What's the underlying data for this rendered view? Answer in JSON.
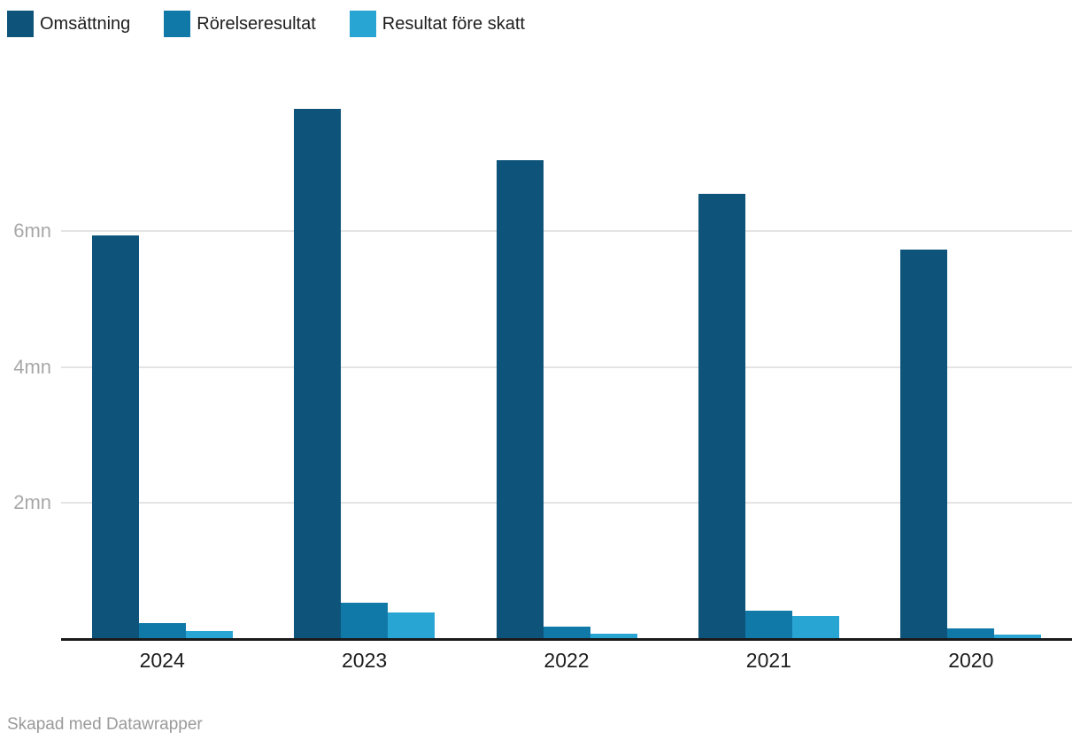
{
  "legend": [
    {
      "label": "Omsättning",
      "color": "#0e547a",
      "icon": "legend-swatch-square"
    },
    {
      "label": "Rörelseresultat",
      "color": "#1179a8",
      "icon": "legend-swatch-square"
    },
    {
      "label": "Resultat före skatt",
      "color": "#29a5d4",
      "icon": "legend-swatch-square"
    }
  ],
  "chart_data": {
    "type": "bar",
    "title": "",
    "categories": [
      "2024",
      "2023",
      "2022",
      "2021",
      "2020"
    ],
    "series": [
      {
        "name": "Omsättning",
        "color": "#0e547a",
        "values": [
          5.94,
          7.81,
          7.05,
          6.55,
          5.73
        ]
      },
      {
        "name": "Rörelseresultat",
        "color": "#1179a8",
        "values": [
          0.22,
          0.52,
          0.17,
          0.41,
          0.14
        ]
      },
      {
        "name": "Resultat före skatt",
        "color": "#29a5d4",
        "values": [
          0.11,
          0.38,
          0.07,
          0.32,
          0.05
        ]
      }
    ],
    "unit": "mn",
    "xlabel": "",
    "ylabel": "",
    "ylim": [
      0,
      8.5
    ],
    "y_ticks": [
      {
        "value": 2,
        "label": "2mn"
      },
      {
        "value": 4,
        "label": "4mn"
      },
      {
        "value": 6,
        "label": "6mn"
      }
    ],
    "grid": true,
    "legend_position": "top-left",
    "colors": {
      "gridline": "#e4e4e4",
      "axis_line": "#1a1a1a",
      "tick_label": "#a8a8a8",
      "category_label": "#1d1d1d"
    }
  },
  "footer": {
    "credit": "Skapad med Datawrapper"
  }
}
